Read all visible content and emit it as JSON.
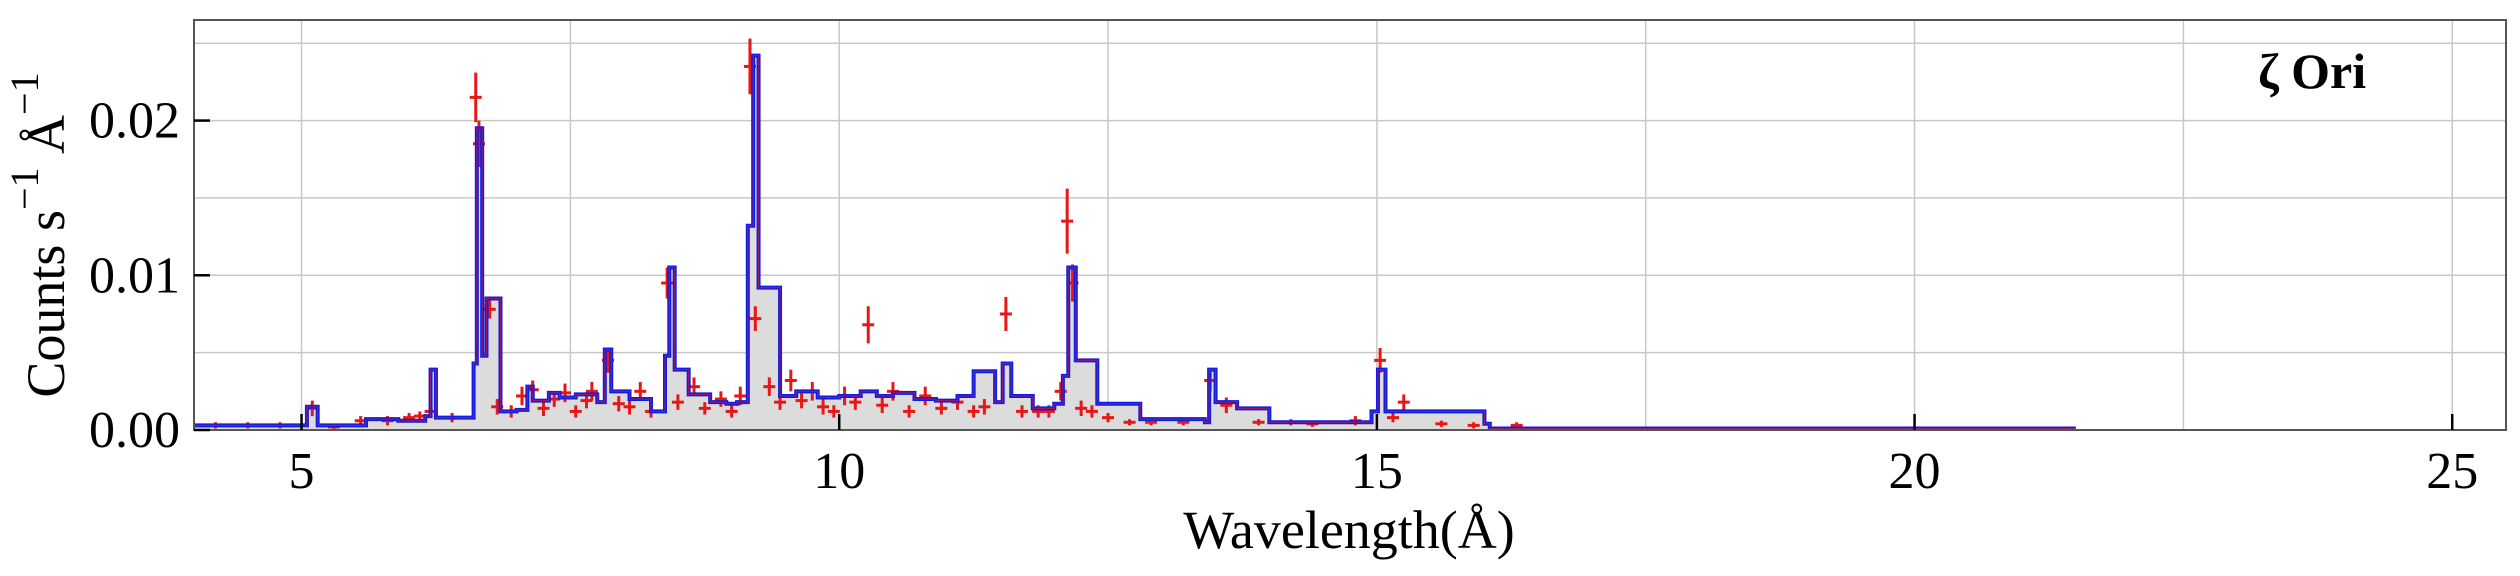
{
  "chart_data": {
    "type": "line",
    "title": "",
    "annotation": "ζ Ori",
    "xlabel": "Wavelength(Å)",
    "ylabel": {
      "base1": "Counts s",
      "sup1": "−1",
      "base2": " Å",
      "sup2": "−1"
    },
    "xlim": [
      4.0,
      25.5
    ],
    "ylim": [
      0.0,
      0.0265
    ],
    "x_ticks": [
      5,
      10,
      15,
      20,
      25
    ],
    "x_tick_labels": [
      "5",
      "10",
      "15",
      "20",
      "25"
    ],
    "y_ticks": [
      0.0,
      0.01,
      0.02
    ],
    "y_tick_labels": [
      "0.00",
      "0.01",
      "0.02"
    ],
    "grid": true,
    "colors": {
      "model": "#0b1de6",
      "data": "#e81717",
      "fill": "#dcdcdc",
      "grid": "#c8c8c8",
      "frame": "#555555"
    },
    "model_series": {
      "name": "model",
      "x": [
        4.0,
        5.05,
        5.15,
        5.6,
        5.9,
        6.15,
        6.2,
        6.25,
        6.55,
        6.6,
        6.63,
        6.68,
        6.72,
        6.85,
        7.0,
        7.1,
        7.15,
        7.3,
        7.4,
        7.55,
        7.75,
        7.82,
        7.88,
        8.05,
        8.25,
        8.38,
        8.42,
        8.47,
        8.6,
        8.8,
        8.95,
        9.05,
        9.15,
        9.2,
        9.25,
        9.45,
        9.6,
        9.8,
        10.0,
        10.2,
        10.35,
        10.5,
        10.7,
        10.9,
        11.1,
        11.25,
        11.45,
        11.52,
        11.6,
        11.8,
        12.0,
        12.08,
        12.13,
        12.2,
        12.4,
        12.8,
        13.4,
        13.44,
        13.5,
        13.7,
        14.0,
        14.5,
        14.95,
        15.01,
        15.08,
        15.3,
        16.0,
        16.05,
        21.5
      ],
      "y": [
        0.0003,
        0.0015,
        0.0003,
        0.0007,
        0.0006,
        0.0009,
        0.0039,
        0.0008,
        0.0008,
        0.0043,
        0.0195,
        0.0048,
        0.0085,
        0.0012,
        0.0013,
        0.0028,
        0.0019,
        0.0024,
        0.0021,
        0.0023,
        0.0018,
        0.0052,
        0.0025,
        0.002,
        0.0012,
        0.0048,
        0.0105,
        0.0039,
        0.0023,
        0.0018,
        0.0017,
        0.0018,
        0.0132,
        0.0242,
        0.0092,
        0.0022,
        0.0025,
        0.0021,
        0.0022,
        0.0025,
        0.0022,
        0.0024,
        0.002,
        0.0019,
        0.0022,
        0.0038,
        0.0018,
        0.0043,
        0.0022,
        0.0014,
        0.0017,
        0.0035,
        0.0105,
        0.0045,
        0.0017,
        0.0007,
        0.0005,
        0.0039,
        0.0018,
        0.0014,
        0.0005,
        0.0005,
        0.0012,
        0.0039,
        0.0012,
        0.0012,
        0.0004,
        0.0001,
        0.0001
      ],
      "end_x": 21.5
    },
    "data_series": {
      "name": "observed",
      "x": [
        4.2,
        4.5,
        4.8,
        5.1,
        5.3,
        5.55,
        5.8,
        6.0,
        6.1,
        6.2,
        6.4,
        6.62,
        6.65,
        6.75,
        6.82,
        6.95,
        7.05,
        7.15,
        7.25,
        7.35,
        7.45,
        7.55,
        7.65,
        7.7,
        7.85,
        7.95,
        8.05,
        8.15,
        8.25,
        8.4,
        8.5,
        8.65,
        8.75,
        8.9,
        9.0,
        9.08,
        9.17,
        9.22,
        9.35,
        9.45,
        9.55,
        9.65,
        9.75,
        9.85,
        9.95,
        10.05,
        10.15,
        10.27,
        10.4,
        10.5,
        10.65,
        10.8,
        10.95,
        11.1,
        11.25,
        11.35,
        11.55,
        11.7,
        11.85,
        11.95,
        12.06,
        12.12,
        12.17,
        12.25,
        12.35,
        12.5,
        12.7,
        12.9,
        13.2,
        13.45,
        13.6,
        13.9,
        14.2,
        14.4,
        14.8,
        15.03,
        15.15,
        15.25,
        15.6,
        15.9,
        16.3,
        17.0,
        18.0,
        19.0,
        20.0,
        21.0
      ],
      "y": [
        0.0003,
        0.0003,
        0.0003,
        0.0014,
        0.0002,
        0.0006,
        0.0006,
        0.0008,
        0.0009,
        0.0012,
        0.0008,
        0.0215,
        0.0185,
        0.0078,
        0.0015,
        0.0012,
        0.0022,
        0.0026,
        0.0014,
        0.002,
        0.0024,
        0.0012,
        0.0019,
        0.0025,
        0.0045,
        0.0017,
        0.0015,
        0.0025,
        0.0012,
        0.0095,
        0.0018,
        0.0028,
        0.0014,
        0.002,
        0.0012,
        0.0022,
        0.0235,
        0.0072,
        0.0028,
        0.0018,
        0.0032,
        0.0019,
        0.0025,
        0.0015,
        0.0012,
        0.0022,
        0.0018,
        0.0068,
        0.0016,
        0.0025,
        0.0012,
        0.0022,
        0.0014,
        0.0018,
        0.0012,
        0.0015,
        0.0075,
        0.0012,
        0.0012,
        0.0012,
        0.0025,
        0.0135,
        0.0095,
        0.0014,
        0.0012,
        0.0008,
        0.0005,
        0.0005,
        0.0005,
        0.0032,
        0.0016,
        0.0005,
        0.0005,
        0.0004,
        0.0006,
        0.0045,
        0.0008,
        0.0018,
        0.0004,
        0.0003,
        0.0003,
        0.0001,
        0.0001,
        0.0001,
        0.0001,
        0.0001
      ],
      "err": [
        0.0002,
        0.0002,
        0.0002,
        0.0005,
        0.0002,
        0.0003,
        0.0003,
        0.0003,
        0.0003,
        0.0004,
        0.0003,
        0.0016,
        0.0015,
        0.0006,
        0.0005,
        0.0004,
        0.0006,
        0.0006,
        0.0005,
        0.0005,
        0.0006,
        0.0004,
        0.0005,
        0.0006,
        0.0008,
        0.0005,
        0.0005,
        0.0006,
        0.0004,
        0.001,
        0.0005,
        0.0006,
        0.0004,
        0.0005,
        0.0004,
        0.0006,
        0.0018,
        0.0008,
        0.0006,
        0.0005,
        0.0007,
        0.0005,
        0.0006,
        0.0005,
        0.0004,
        0.0006,
        0.0005,
        0.0012,
        0.0005,
        0.0006,
        0.0004,
        0.0006,
        0.0004,
        0.0005,
        0.0004,
        0.0005,
        0.0011,
        0.0004,
        0.0004,
        0.0004,
        0.0006,
        0.0021,
        0.0012,
        0.0005,
        0.0004,
        0.0003,
        0.0002,
        0.0002,
        0.0002,
        0.0007,
        0.0005,
        0.0002,
        0.0002,
        0.0002,
        0.0003,
        0.0008,
        0.0003,
        0.0005,
        0.0002,
        0.0002,
        0.0002,
        0.0001,
        0.0001,
        0.0001,
        0.0001,
        0.0001
      ]
    }
  }
}
